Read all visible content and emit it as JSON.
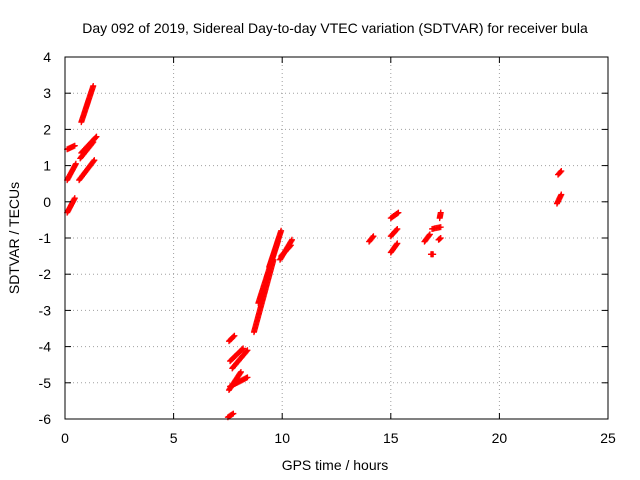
{
  "chart_data": {
    "type": "scatter",
    "title": "Day 092 of 2019, Sidereal Day-to-day VTEC variation (SDTVAR) for receiver bula",
    "xlabel": "GPS time / hours",
    "ylabel": "SDTVAR / TECUs",
    "xlim": [
      0,
      25
    ],
    "ylim": [
      -6,
      4
    ],
    "xticks": [
      0,
      5,
      10,
      15,
      20,
      25
    ],
    "yticks": [
      -6,
      -5,
      -4,
      -3,
      -2,
      -1,
      0,
      1,
      2,
      3,
      4
    ],
    "xtick_labels": [
      "0",
      "5",
      "10",
      "15",
      "20",
      "25"
    ],
    "ytick_labels": [
      "-6",
      "-5",
      "-4",
      "-3",
      "-2",
      "-1",
      "0",
      "1",
      "2",
      "3",
      "4"
    ],
    "grid": true,
    "marker": "+",
    "marker_color": "#ff0000",
    "segments": [
      {
        "x": [
          0.1,
          0.5
        ],
        "y": [
          0.6,
          1.05
        ]
      },
      {
        "x": [
          0.1,
          0.45
        ],
        "y": [
          -0.3,
          0.1
        ]
      },
      {
        "x": [
          0.1,
          0.45
        ],
        "y": [
          1.45,
          1.55
        ]
      },
      {
        "x": [
          0.65,
          1.35
        ],
        "y": [
          0.6,
          1.15
        ]
      },
      {
        "x": [
          0.7,
          1.3
        ],
        "y": [
          1.2,
          1.65
        ]
      },
      {
        "x": [
          0.75,
          1.45
        ],
        "y": [
          1.35,
          1.8
        ]
      },
      {
        "x": [
          0.75,
          1.3
        ],
        "y": [
          2.2,
          3.2
        ]
      },
      {
        "x": [
          7.55,
          7.8
        ],
        "y": [
          -3.85,
          -3.7
        ]
      },
      {
        "x": [
          7.5,
          7.75
        ],
        "y": [
          -5.95,
          -5.85
        ]
      },
      {
        "x": [
          7.55,
          8.1
        ],
        "y": [
          -5.2,
          -4.7
        ]
      },
      {
        "x": [
          7.6,
          8.2
        ],
        "y": [
          -4.4,
          -4.05
        ]
      },
      {
        "x": [
          7.6,
          8.4
        ],
        "y": [
          -5.1,
          -4.85
        ]
      },
      {
        "x": [
          7.7,
          8.4
        ],
        "y": [
          -4.6,
          -4.1
        ]
      },
      {
        "x": [
          8.7,
          9.6
        ],
        "y": [
          -3.6,
          -1.6
        ]
      },
      {
        "x": [
          8.9,
          9.8
        ],
        "y": [
          -2.8,
          -1.1
        ]
      },
      {
        "x": [
          9.4,
          9.95
        ],
        "y": [
          -1.8,
          -0.8
        ]
      },
      {
        "x": [
          9.9,
          10.45
        ],
        "y": [
          -1.6,
          -1.05
        ]
      },
      {
        "x": [
          9.95,
          10.4
        ],
        "y": [
          -1.5,
          -1.2
        ]
      },
      {
        "x": [
          14.0,
          14.2
        ],
        "y": [
          -1.1,
          -0.95
        ]
      },
      {
        "x": [
          15.0,
          15.35
        ],
        "y": [
          -0.45,
          -0.3
        ]
      },
      {
        "x": [
          15.0,
          15.3
        ],
        "y": [
          -0.95,
          -0.75
        ]
      },
      {
        "x": [
          15.0,
          15.3
        ],
        "y": [
          -1.4,
          -1.15
        ]
      },
      {
        "x": [
          16.55,
          16.8
        ],
        "y": [
          -1.1,
          -0.9
        ]
      },
      {
        "x": [
          16.85,
          16.95
        ],
        "y": [
          -1.45,
          -1.45
        ]
      },
      {
        "x": [
          16.9,
          17.3
        ],
        "y": [
          -0.75,
          -0.7
        ]
      },
      {
        "x": [
          17.2,
          17.3
        ],
        "y": [
          -1.05,
          -1.0
        ]
      },
      {
        "x": [
          17.25,
          17.3
        ],
        "y": [
          -0.45,
          -0.3
        ]
      },
      {
        "x": [
          22.7,
          22.85
        ],
        "y": [
          0.75,
          0.85
        ]
      },
      {
        "x": [
          22.65,
          22.85
        ],
        "y": [
          -0.05,
          0.2
        ]
      }
    ]
  }
}
